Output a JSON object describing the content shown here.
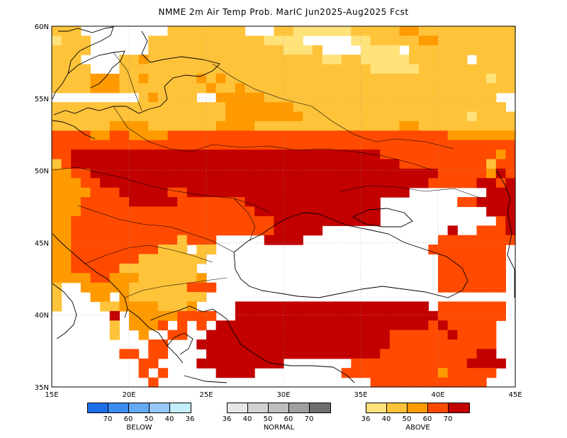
{
  "title": "NMME 2m Air Temp Prob. MarIC  Jun2025-Aug2025 Fcst",
  "map": {
    "lon_labels": [
      "15E",
      "20E",
      "25E",
      "30E",
      "35E",
      "40E",
      "45E"
    ],
    "lat_labels": [
      "60N",
      "55N",
      "50N",
      "45N",
      "40N",
      "35N"
    ],
    "grid_lines": "dotted",
    "category_colors": {
      "above_36": "#ffe27a",
      "above_40": "#ffc33a",
      "above_50": "#ff9a00",
      "above_60": "#ff4a00",
      "above_70": "#c20000"
    }
  },
  "legend": {
    "below": {
      "label": "BELOW",
      "ticks": [
        "70",
        "60",
        "50",
        "40",
        "36"
      ],
      "colors": [
        "#1e6ee8",
        "#3c8cf0",
        "#64aaf5",
        "#96c8fa",
        "#c3eefb"
      ]
    },
    "normal": {
      "label": "NORMAL",
      "ticks": [
        "36",
        "40",
        "50",
        "60",
        "70"
      ],
      "colors": [
        "#e6e6e6",
        "#d2d2d2",
        "#bebebe",
        "#a0a0a0",
        "#6e6e6e"
      ]
    },
    "above": {
      "label": "ABOVE",
      "ticks": [
        "36",
        "40",
        "50",
        "60",
        "70"
      ],
      "colors": [
        "#ffe27a",
        "#ffc33a",
        "#ff9a00",
        "#ff4a00",
        "#c20000"
      ]
    }
  }
}
